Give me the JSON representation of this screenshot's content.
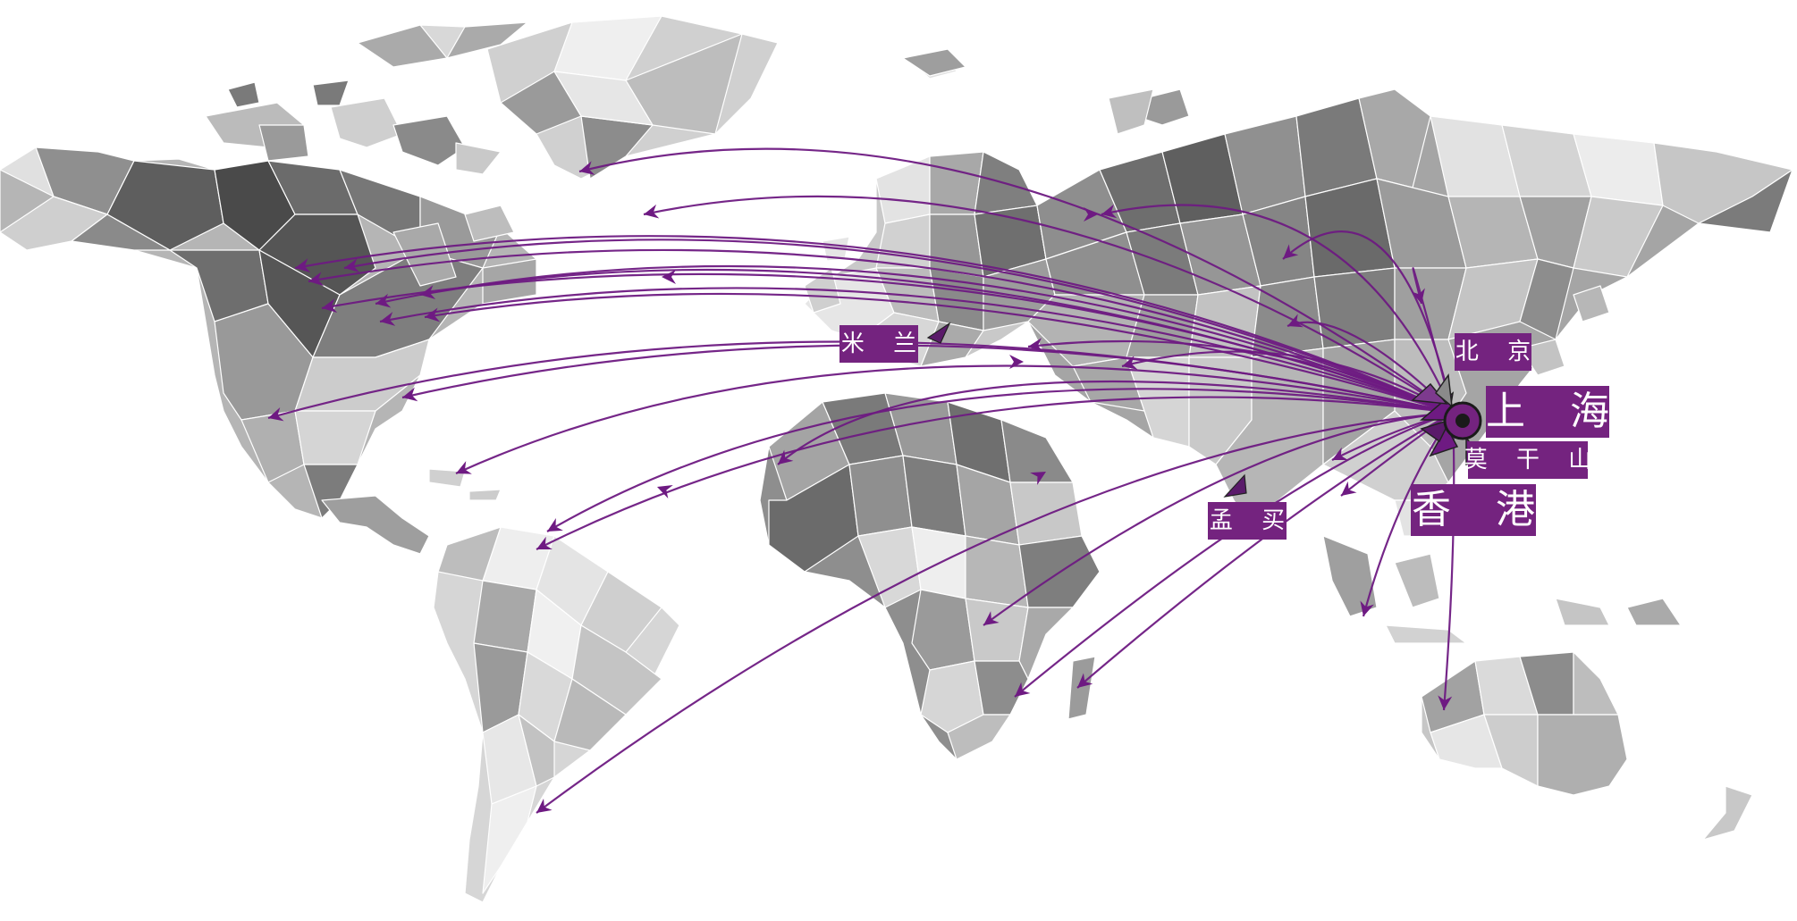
{
  "map": {
    "land_color_light": "#d9d9d9",
    "land_color_dark": "#6a6a6a",
    "route_color": "#6e1a82",
    "label_bg_color": "#74237f",
    "hub_marker": "target-circle-icon"
  },
  "cities": {
    "shanghai": "上 海",
    "beijing": "北 京",
    "moganshan": "莫 干 山",
    "hongkong": "香 港",
    "milan": "米 兰",
    "mumbai": "孟 买"
  }
}
